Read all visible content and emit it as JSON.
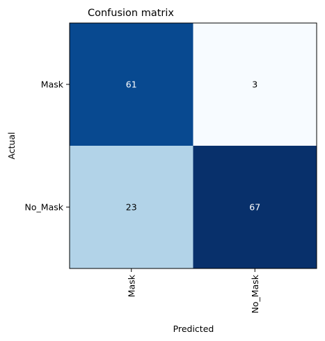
{
  "chart_data": {
    "type": "heatmap",
    "title": "Confusion matrix",
    "xlabel": "Predicted",
    "ylabel": "Actual",
    "x_categories": [
      "Mask",
      "No_Mask"
    ],
    "y_categories": [
      "Mask",
      "No_Mask"
    ],
    "matrix": [
      [
        61,
        3
      ],
      [
        23,
        67
      ]
    ],
    "colormap": "Blues",
    "colors": {
      "low": "#f7fbff",
      "high": "#08306b",
      "text_dark": "#000000",
      "text_light": "#ffffff"
    },
    "grid": false
  }
}
